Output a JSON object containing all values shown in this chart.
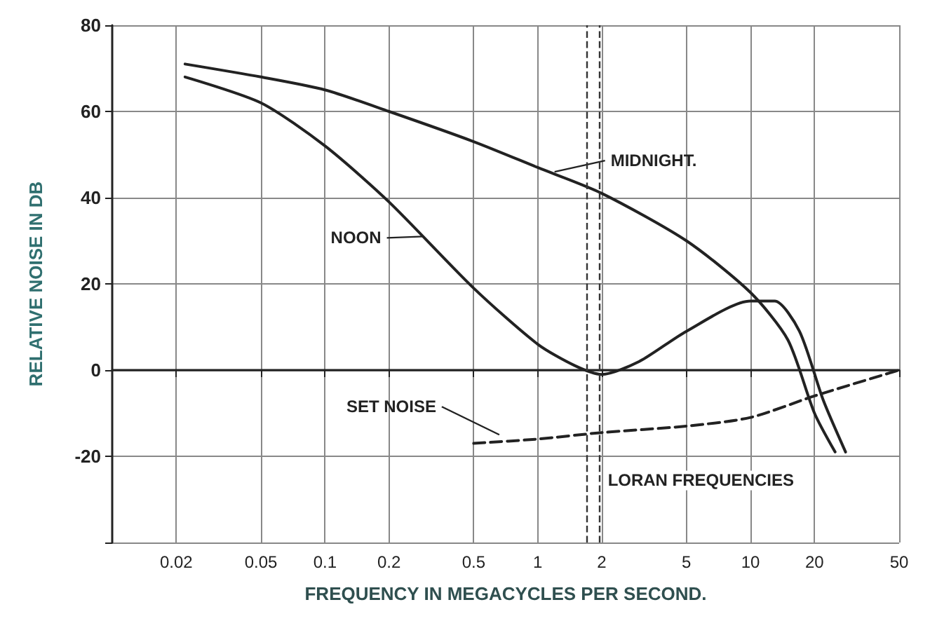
{
  "chart_data": {
    "type": "line",
    "xlabel": "FREQUENCY IN MEGACYCLES PER SECOND.",
    "ylabel": "RELATIVE NOISE IN DB",
    "log": "x",
    "xlim": [
      0.01,
      50
    ],
    "xticks": [
      0.02,
      0.05,
      0.1,
      0.2,
      0.5,
      1,
      2,
      5,
      10,
      20,
      50
    ],
    "ylim": [
      -40,
      80
    ],
    "yticks": [
      {
        "value": -40,
        "label": null
      },
      -20,
      0,
      20,
      40,
      60,
      80
    ],
    "grid": true,
    "marker": "none",
    "series": [
      {
        "color": "#222222",
        "line_style": "solid",
        "x": [
          0.022,
          0.05,
          0.1,
          0.2,
          0.5,
          1,
          2,
          5,
          10,
          15,
          20,
          25
        ],
        "values": [
          71,
          68,
          65,
          60,
          53,
          47,
          41,
          30,
          18,
          7,
          -10,
          -19
        ]
      },
      {
        "color": "#222222",
        "line_style": "solid",
        "x": [
          0.022,
          0.05,
          0.1,
          0.2,
          0.5,
          1,
          1.5,
          2,
          3,
          5,
          10,
          13,
          17,
          22,
          28
        ],
        "values": [
          68,
          62,
          52,
          39,
          19,
          6,
          1,
          -1,
          2,
          9,
          16,
          16,
          9,
          -7,
          -19
        ]
      },
      {
        "color": "#222222",
        "line_style": "dashed",
        "x": [
          0.5,
          1,
          2,
          5,
          10,
          20,
          50
        ],
        "values": [
          -17,
          -16,
          -14.5,
          -13,
          -11,
          -6,
          0
        ]
      }
    ],
    "ref_lines": [
      {
        "axis": "x",
        "value": 1.7,
        "label": null,
        "line_style": "dashed",
        "color": "#333333"
      },
      {
        "axis": "x",
        "value": 1.95,
        "label": "LORAN FREQUENCIES",
        "line_style": "dashed",
        "color": "#333333"
      }
    ],
    "annotations": [
      {
        "text": "MIDNIGHT.",
        "x": 1.2,
        "y": 46
      },
      {
        "text": "NOON",
        "x": 0.29,
        "y": 31
      },
      {
        "text": "SET NOISE",
        "x": 0.66,
        "y": -15
      }
    ]
  }
}
